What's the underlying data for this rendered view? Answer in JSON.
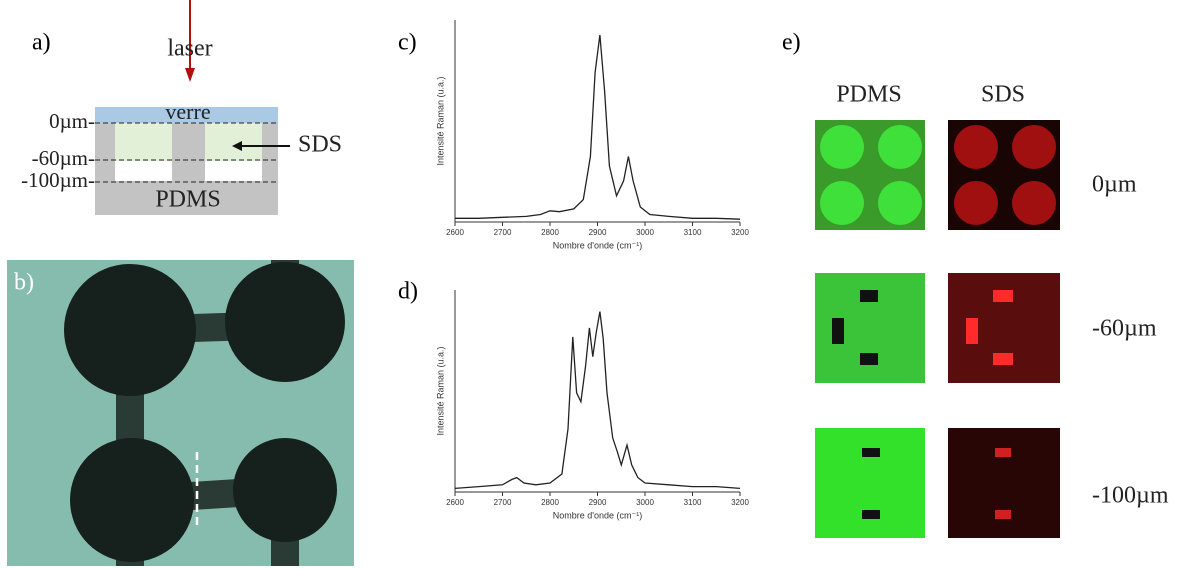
{
  "panels": {
    "a": {
      "label": "a)",
      "laser": "laser",
      "glass": "verre",
      "sds": "SDS",
      "pdms": "PDMS",
      "depths": [
        "0µm-",
        "-60µm-",
        "-100µm-"
      ]
    },
    "b": {
      "label": "b)"
    },
    "e": {
      "label": "e)",
      "columns": [
        "PDMS",
        "SDS"
      ],
      "rows": [
        "0µm",
        "-60µm",
        "-100µm"
      ]
    }
  },
  "chart_data": [
    {
      "type": "line",
      "title": "c)",
      "x_label": "Nombre d'onde (cm⁻¹)",
      "y_label": "Intensité Raman (u.a.)",
      "x": [
        2600,
        2650,
        2700,
        2750,
        2780,
        2800,
        2820,
        2850,
        2870,
        2885,
        2895,
        2905,
        2915,
        2925,
        2940,
        2955,
        2965,
        2975,
        2990,
        3010,
        3050,
        3100,
        3150,
        3200
      ],
      "values": [
        2,
        2,
        2.5,
        3,
        4,
        6,
        5.5,
        7,
        12,
        35,
        80,
        100,
        70,
        30,
        14,
        22,
        35,
        22,
        8,
        4,
        3,
        2,
        2,
        1.5
      ],
      "color": "#222222",
      "xlim": [
        2600,
        3200
      ],
      "ylim": [
        0,
        108
      ],
      "xticks": [
        2600,
        2700,
        2800,
        2900,
        3000,
        3100,
        3200
      ]
    },
    {
      "type": "line",
      "title": "d)",
      "x_label": "Nombre d'onde (cm⁻¹)",
      "y_label": "Intensité Raman (u.a.)",
      "x": [
        2600,
        2650,
        2700,
        2720,
        2730,
        2745,
        2770,
        2800,
        2825,
        2838,
        2848,
        2856,
        2865,
        2875,
        2883,
        2890,
        2897,
        2905,
        2912,
        2920,
        2932,
        2942,
        2950,
        2962,
        2972,
        2985,
        3000,
        3050,
        3100,
        3150,
        3200
      ],
      "values": [
        2,
        3,
        4,
        7,
        8,
        5,
        4,
        5,
        10,
        35,
        86,
        55,
        50,
        70,
        91,
        75,
        88,
        100,
        85,
        55,
        30,
        22,
        15,
        26,
        15,
        8,
        5,
        4,
        3,
        3,
        2
      ],
      "color": "#222222",
      "xlim": [
        2600,
        3200
      ],
      "ylim": [
        0,
        112
      ],
      "xticks": [
        2600,
        2700,
        2800,
        2900,
        3000,
        3100,
        3200
      ]
    }
  ]
}
